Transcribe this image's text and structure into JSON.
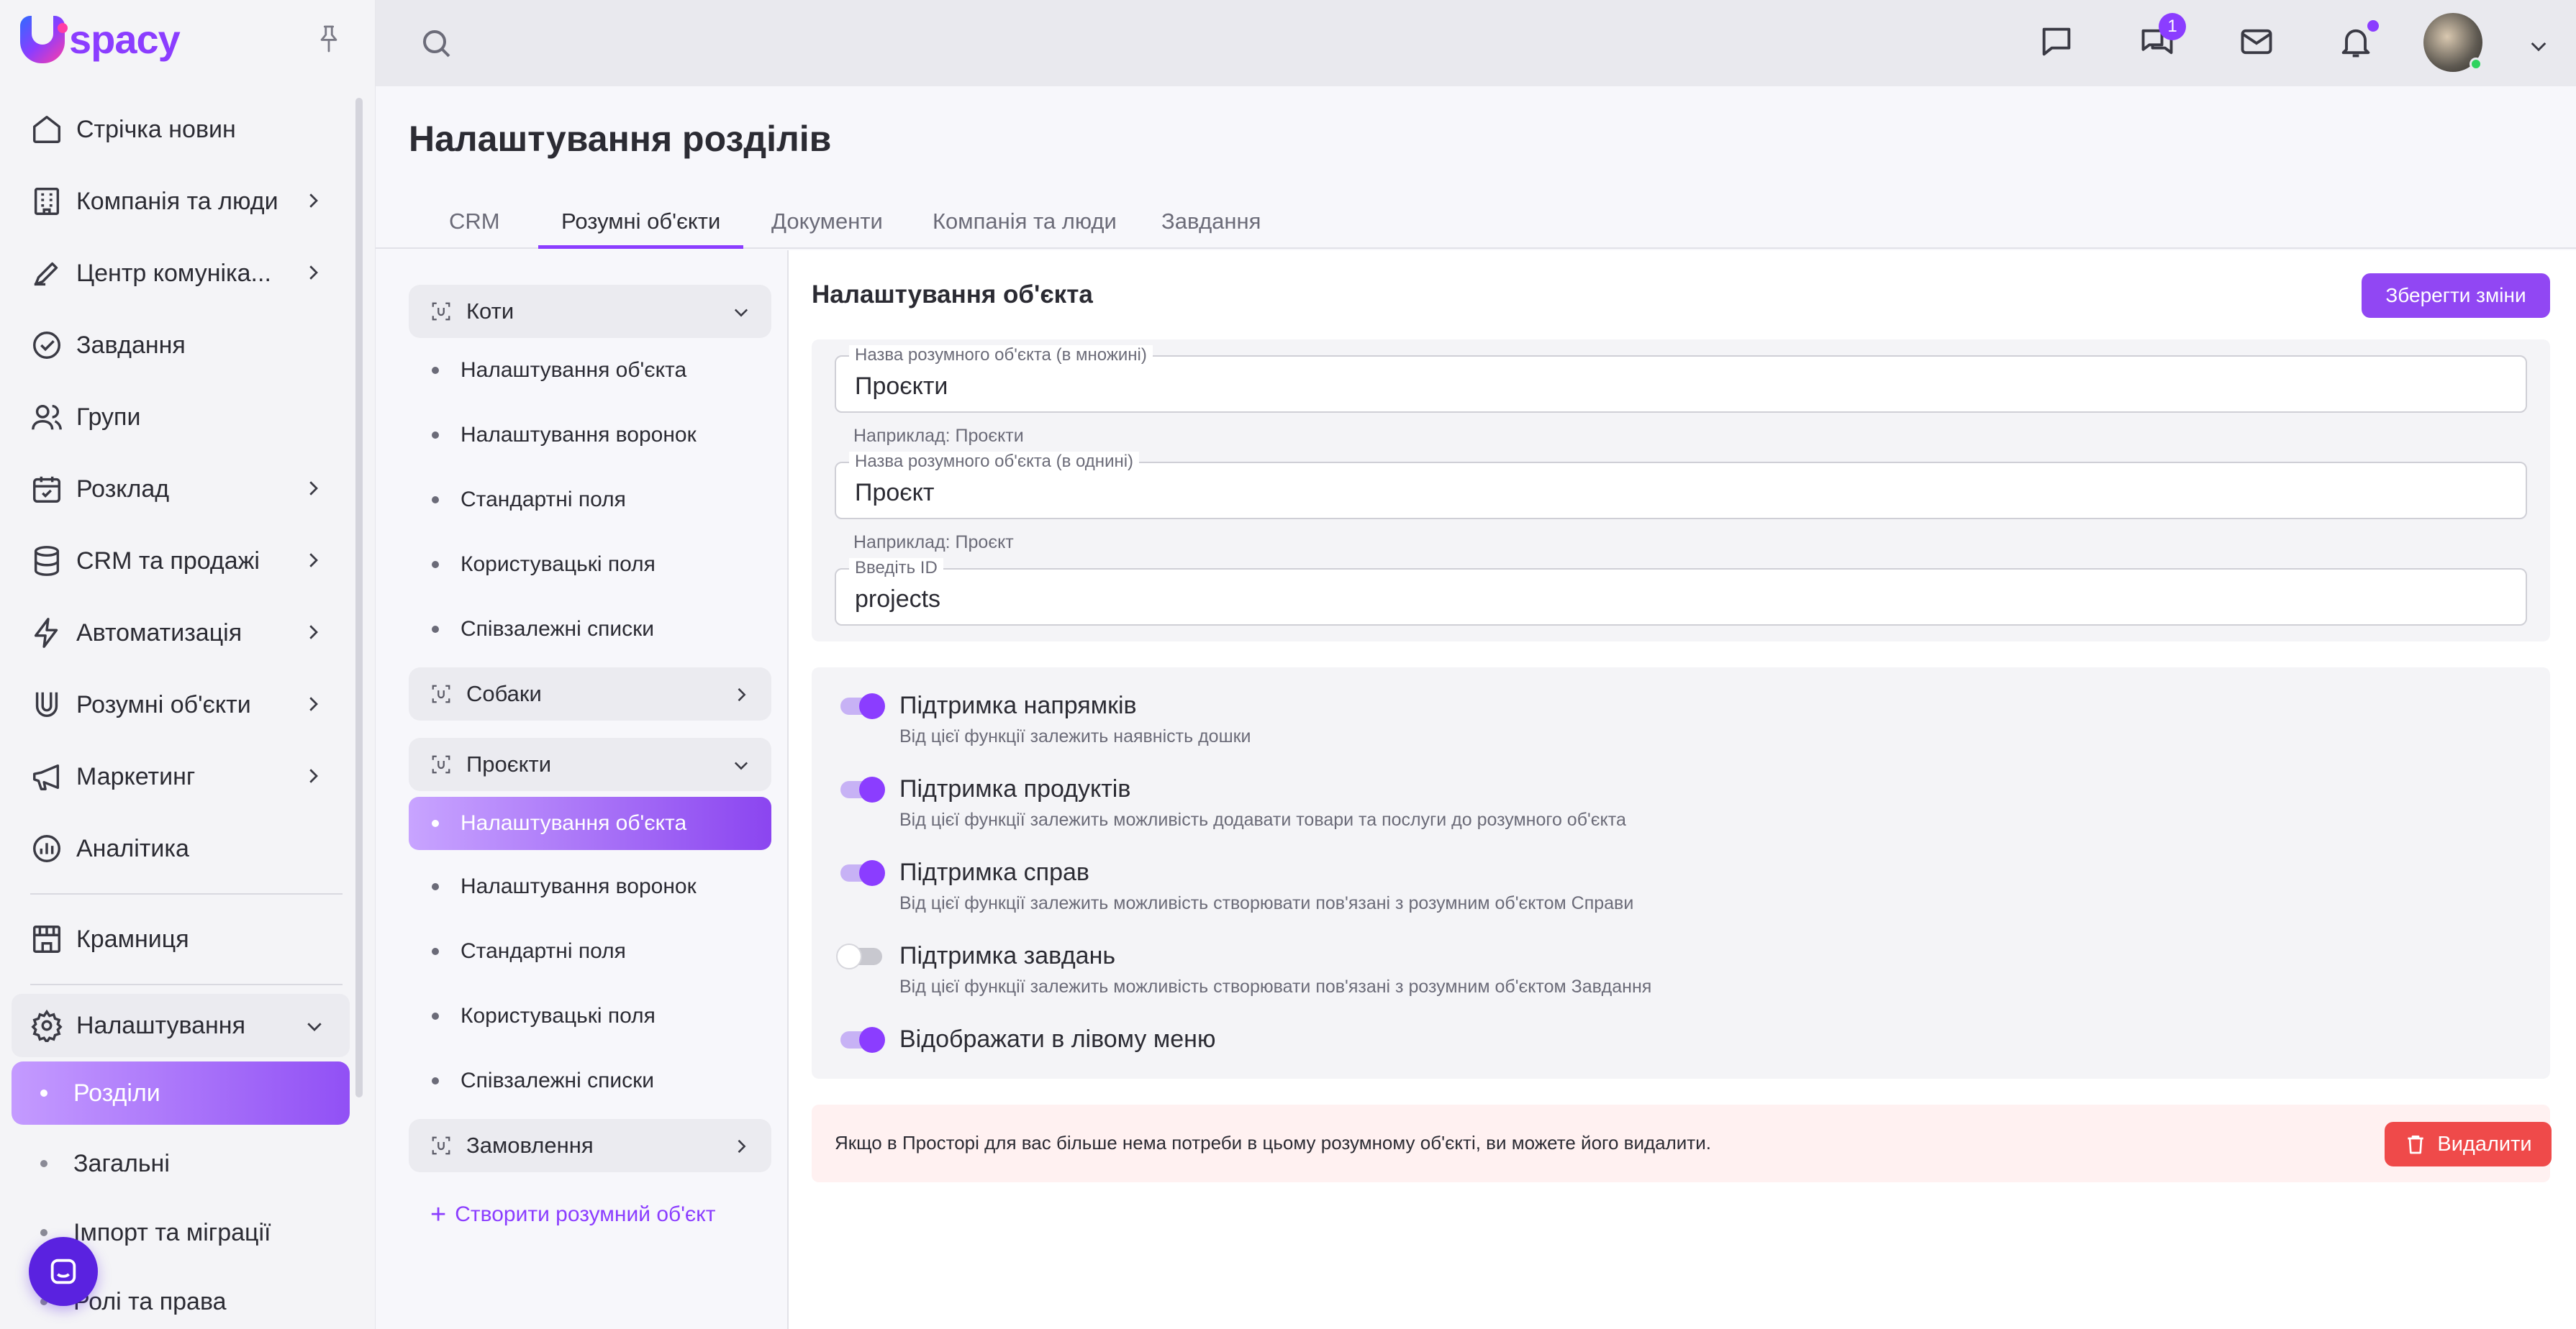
{
  "brand": {
    "name": "spacy",
    "accent": "#8b3dff"
  },
  "sidebar": {
    "items": [
      {
        "label": "Стрічка новин",
        "icon": "home-icon",
        "has_arrow": false
      },
      {
        "label": "Компанія та люди",
        "icon": "building-icon",
        "has_arrow": true
      },
      {
        "label": "Центр комуніка...",
        "icon": "chat-edit-icon",
        "has_arrow": true
      },
      {
        "label": "Завдання",
        "icon": "check-circle-icon",
        "has_arrow": false
      },
      {
        "label": "Групи",
        "icon": "users-icon",
        "has_arrow": false
      },
      {
        "label": "Розклад",
        "icon": "calendar-check-icon",
        "has_arrow": true
      },
      {
        "label": "CRM та продажі",
        "icon": "database-icon",
        "has_arrow": true
      },
      {
        "label": "Автоматизація",
        "icon": "lightning-icon",
        "has_arrow": true
      },
      {
        "label": "Розумні об'єкти",
        "icon": "smart-object-icon",
        "has_arrow": true
      },
      {
        "label": "Маркетинг",
        "icon": "megaphone-icon",
        "has_arrow": true
      },
      {
        "label": "Аналітика",
        "icon": "chart-circle-icon",
        "has_arrow": false
      }
    ],
    "store": {
      "label": "Крамниця",
      "icon": "store-icon"
    },
    "settings": {
      "label": "Налаштування",
      "icon": "gear-icon",
      "children": [
        "Розділи",
        "Загальні",
        "Імпорт та міграції",
        "Ролі та права"
      ],
      "active_child": "Розділи"
    }
  },
  "topbar": {
    "messages_badge": "1"
  },
  "page": {
    "title": "Налаштування розділів",
    "tabs": [
      "CRM",
      "Розумні об'єкти",
      "Документи",
      "Компанія та люди",
      "Завдання"
    ],
    "active_tab": "Розумні об'єкти"
  },
  "objects": {
    "groups": [
      {
        "name": "Коти",
        "expanded": true,
        "items": [
          "Налаштування об'єкта",
          "Налаштування воронок",
          "Стандартні поля",
          "Користувацькі поля",
          "Співзалежні списки"
        ]
      },
      {
        "name": "Собаки",
        "expanded": false
      },
      {
        "name": "Проєкти",
        "expanded": true,
        "items": [
          "Налаштування об'єкта",
          "Налаштування воронок",
          "Стандартні поля",
          "Користувацькі поля",
          "Співзалежні списки"
        ],
        "active_item": "Налаштування об'єкта"
      },
      {
        "name": "Замовлення",
        "expanded": false
      }
    ],
    "create_label": "Створити розумний об'єкт"
  },
  "settings_form": {
    "title": "Налаштування об'єкта",
    "save_label": "Зберегти зміни",
    "fields": [
      {
        "label": "Назва розумного об'єкта (в множині)",
        "value": "Проєкти",
        "hint": "Наприклад: Проєкти"
      },
      {
        "label": "Назва розумного об'єкта (в однині)",
        "value": "Проєкт",
        "hint": "Наприклад: Проєкт"
      },
      {
        "label": "Введіть ID",
        "value": "projects"
      }
    ],
    "toggles": [
      {
        "title": "Підтримка напрямків",
        "desc": "Від цієї функції залежить наявність дошки",
        "on": true
      },
      {
        "title": "Підтримка продуктів",
        "desc": "Від цієї функції залежить можливість додавати товари та послуги до розумного об'єкта",
        "on": true
      },
      {
        "title": "Підтримка справ",
        "desc": "Від цієї функції залежить можливість створювати пов'язані з розумним об'єктом Справи",
        "on": true
      },
      {
        "title": "Підтримка завдань",
        "desc": "Від цієї функції залежить можливість створювати пов'язані з розумним об'єктом Завдання",
        "on": false
      },
      {
        "title": "Відображати в лівому меню",
        "desc": "",
        "on": true
      }
    ],
    "danger": {
      "text": "Якщо в Просторі для вас більше нема потреби в цьому розумному об'єкті, ви можете його видалити.",
      "delete_label": "Видалити"
    }
  }
}
